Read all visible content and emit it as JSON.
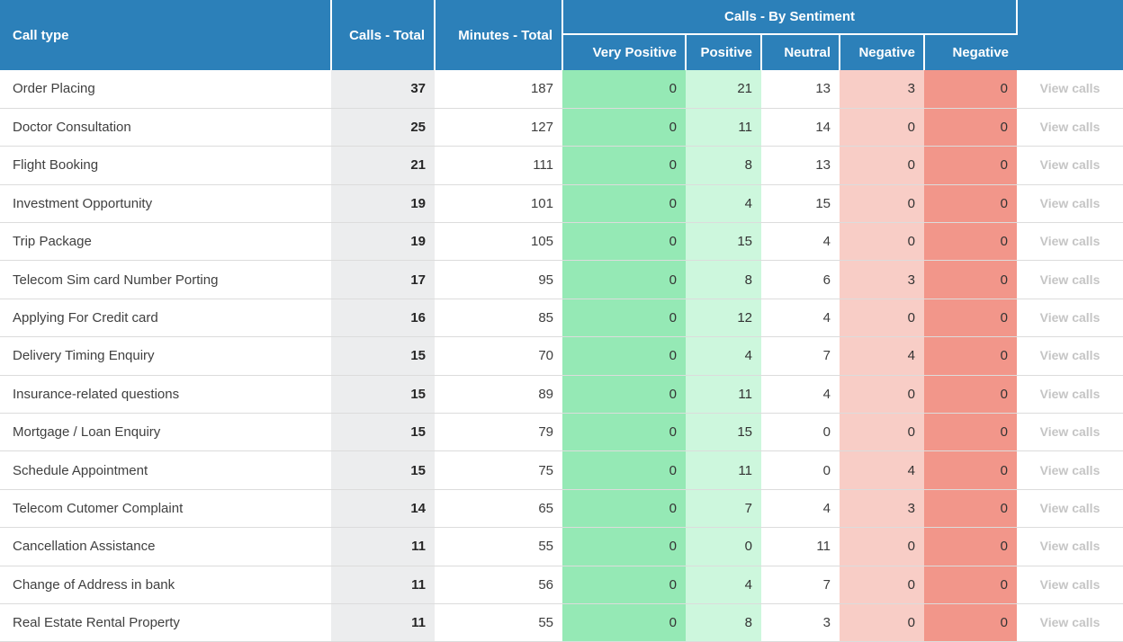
{
  "table": {
    "header": {
      "call_type": "Call type",
      "calls_total": "Calls - Total",
      "minutes_total": "Minutes - Total",
      "sentiment_group": "Calls - By Sentiment",
      "sentiment_columns": [
        "Very Positive",
        "Positive",
        "Neutral",
        "Negative",
        "Negative"
      ]
    },
    "view_calls_label": "View calls",
    "rows": [
      {
        "call_type": "Order Placing",
        "calls_total": "37",
        "minutes_total": "187",
        "very_positive": "0",
        "positive": "21",
        "neutral": "13",
        "negative": "3",
        "very_negative": "0"
      },
      {
        "call_type": "Doctor Consultation",
        "calls_total": "25",
        "minutes_total": "127",
        "very_positive": "0",
        "positive": "11",
        "neutral": "14",
        "negative": "0",
        "very_negative": "0"
      },
      {
        "call_type": "Flight Booking",
        "calls_total": "21",
        "minutes_total": "111",
        "very_positive": "0",
        "positive": "8",
        "neutral": "13",
        "negative": "0",
        "very_negative": "0"
      },
      {
        "call_type": "Investment Opportunity",
        "calls_total": "19",
        "minutes_total": "101",
        "very_positive": "0",
        "positive": "4",
        "neutral": "15",
        "negative": "0",
        "very_negative": "0"
      },
      {
        "call_type": "Trip Package",
        "calls_total": "19",
        "minutes_total": "105",
        "very_positive": "0",
        "positive": "15",
        "neutral": "4",
        "negative": "0",
        "very_negative": "0"
      },
      {
        "call_type": "Telecom Sim card Number Porting",
        "calls_total": "17",
        "minutes_total": "95",
        "very_positive": "0",
        "positive": "8",
        "neutral": "6",
        "negative": "3",
        "very_negative": "0"
      },
      {
        "call_type": "Applying For Credit card",
        "calls_total": "16",
        "minutes_total": "85",
        "very_positive": "0",
        "positive": "12",
        "neutral": "4",
        "negative": "0",
        "very_negative": "0"
      },
      {
        "call_type": "Delivery Timing Enquiry",
        "calls_total": "15",
        "minutes_total": "70",
        "very_positive": "0",
        "positive": "4",
        "neutral": "7",
        "negative": "4",
        "very_negative": "0"
      },
      {
        "call_type": "Insurance-related questions",
        "calls_total": "15",
        "minutes_total": "89",
        "very_positive": "0",
        "positive": "11",
        "neutral": "4",
        "negative": "0",
        "very_negative": "0"
      },
      {
        "call_type": "Mortgage / Loan Enquiry",
        "calls_total": "15",
        "minutes_total": "79",
        "very_positive": "0",
        "positive": "15",
        "neutral": "0",
        "negative": "0",
        "very_negative": "0"
      },
      {
        "call_type": "Schedule Appointment",
        "calls_total": "15",
        "minutes_total": "75",
        "very_positive": "0",
        "positive": "11",
        "neutral": "0",
        "negative": "4",
        "very_negative": "0"
      },
      {
        "call_type": "Telecom Cutomer Complaint",
        "calls_total": "14",
        "minutes_total": "65",
        "very_positive": "0",
        "positive": "7",
        "neutral": "4",
        "negative": "3",
        "very_negative": "0"
      },
      {
        "call_type": "Cancellation Assistance",
        "calls_total": "11",
        "minutes_total": "55",
        "very_positive": "0",
        "positive": "0",
        "neutral": "11",
        "negative": "0",
        "very_negative": "0"
      },
      {
        "call_type": "Change of Address in bank",
        "calls_total": "11",
        "minutes_total": "56",
        "very_positive": "0",
        "positive": "4",
        "neutral": "7",
        "negative": "0",
        "very_negative": "0"
      },
      {
        "call_type": "Real Estate Rental Property",
        "calls_total": "11",
        "minutes_total": "55",
        "very_positive": "0",
        "positive": "8",
        "neutral": "3",
        "negative": "0",
        "very_negative": "0"
      }
    ]
  },
  "colors": {
    "header_bg": "#2c80b9",
    "very_positive_bg": "#95e9b5",
    "positive_bg": "#cdf7dd",
    "neutral_bg": "#ffffff",
    "negative_bg": "#f8cdc6",
    "very_negative_bg": "#f2968a",
    "calls_total_bg": "#ecedee",
    "row_border": "#dcdcdc",
    "view_calls_text": "#c5c5c5"
  }
}
